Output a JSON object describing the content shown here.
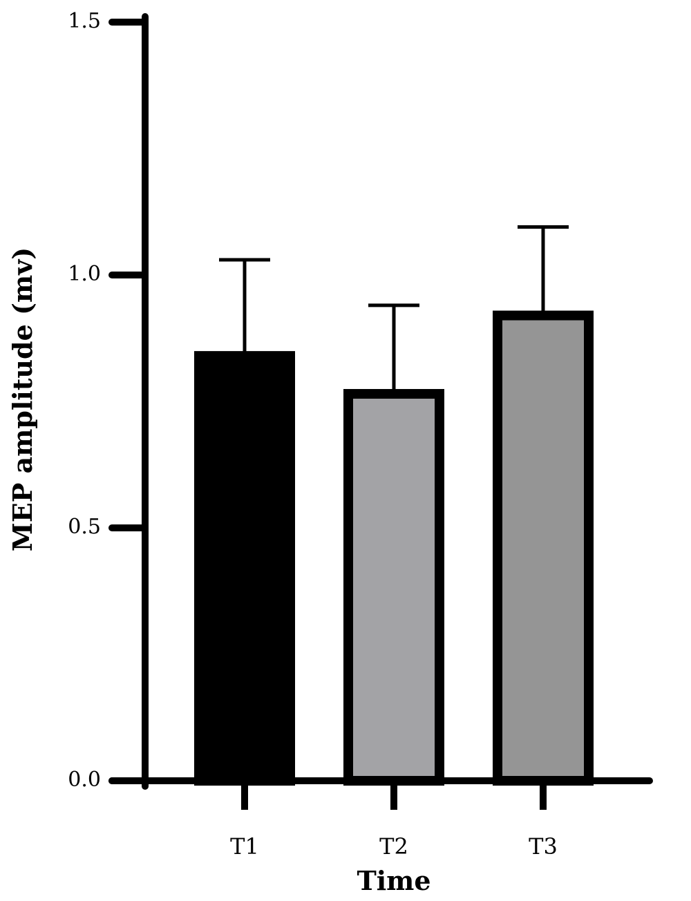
{
  "chart_data": {
    "type": "bar",
    "categories": [
      "T1",
      "T2",
      "T3"
    ],
    "values": [
      0.84,
      0.765,
      0.92
    ],
    "errors": [
      0.19,
      0.175,
      0.175
    ],
    "bar_fills": [
      "#000000",
      "#a3a3a6",
      "#959595"
    ],
    "xlabel": "Time",
    "ylabel": "MEP amplitude (mv)",
    "ylim": [
      0,
      1.5
    ],
    "yticks": [
      0.0,
      0.5,
      1.0,
      1.5
    ],
    "ytick_labels": [
      "0.0",
      "0.5",
      "1.0",
      "1.5"
    ],
    "grid": false,
    "legend": "none"
  }
}
